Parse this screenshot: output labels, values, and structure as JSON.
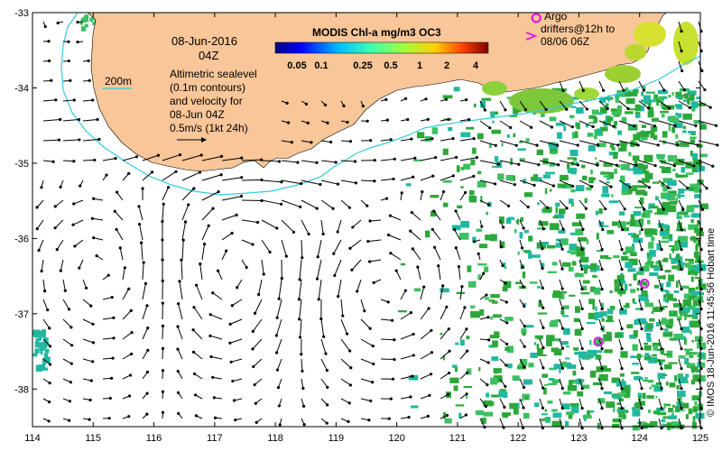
{
  "map": {
    "title_date": "08-Jun-2016",
    "title_time": "04Z",
    "sealevel_note": [
      "Altimetric sealevel",
      "(0.1m contours)",
      "and velocity for",
      "08-Jun 04Z",
      "0.5m/s (1kt 24h)"
    ],
    "isobath_label": "200m",
    "colorbar_title": "MODIS Chl-a mg/m3 OC3",
    "colorbar_ticks": [
      "0.05",
      "0.1",
      "0.25",
      "0.5",
      "1",
      "2",
      "4"
    ],
    "argo_legend": [
      "Argo",
      "drifters@12h to",
      "08/06 06Z"
    ],
    "credit": "© IMOS 18-Jun-2016 11:45:56 Hobart time",
    "lon_ticks": [
      "114",
      "115",
      "116",
      "117",
      "118",
      "119",
      "120",
      "121",
      "122",
      "123",
      "124",
      "125"
    ],
    "lat_ticks": [
      "-33",
      "-34",
      "-35",
      "-36",
      "-37",
      "-38"
    ],
    "lon_range": [
      114,
      125
    ],
    "lat_range": [
      -33,
      -38.5
    ],
    "colors": {
      "land": "#f8c698",
      "isobath": "#33ccdd",
      "argo": "#e020e0",
      "chl_green": "#2ca83a",
      "chl_mid": "#3cc060",
      "chl_teal": "#22b8a0",
      "chl_yellow": "#c8e020"
    },
    "argo_floats": [
      {
        "lon": 122.3,
        "lat": -33.07
      },
      {
        "lon": 123.32,
        "lat": -37.37
      },
      {
        "lon": 124.08,
        "lat": -36.6
      }
    ]
  }
}
